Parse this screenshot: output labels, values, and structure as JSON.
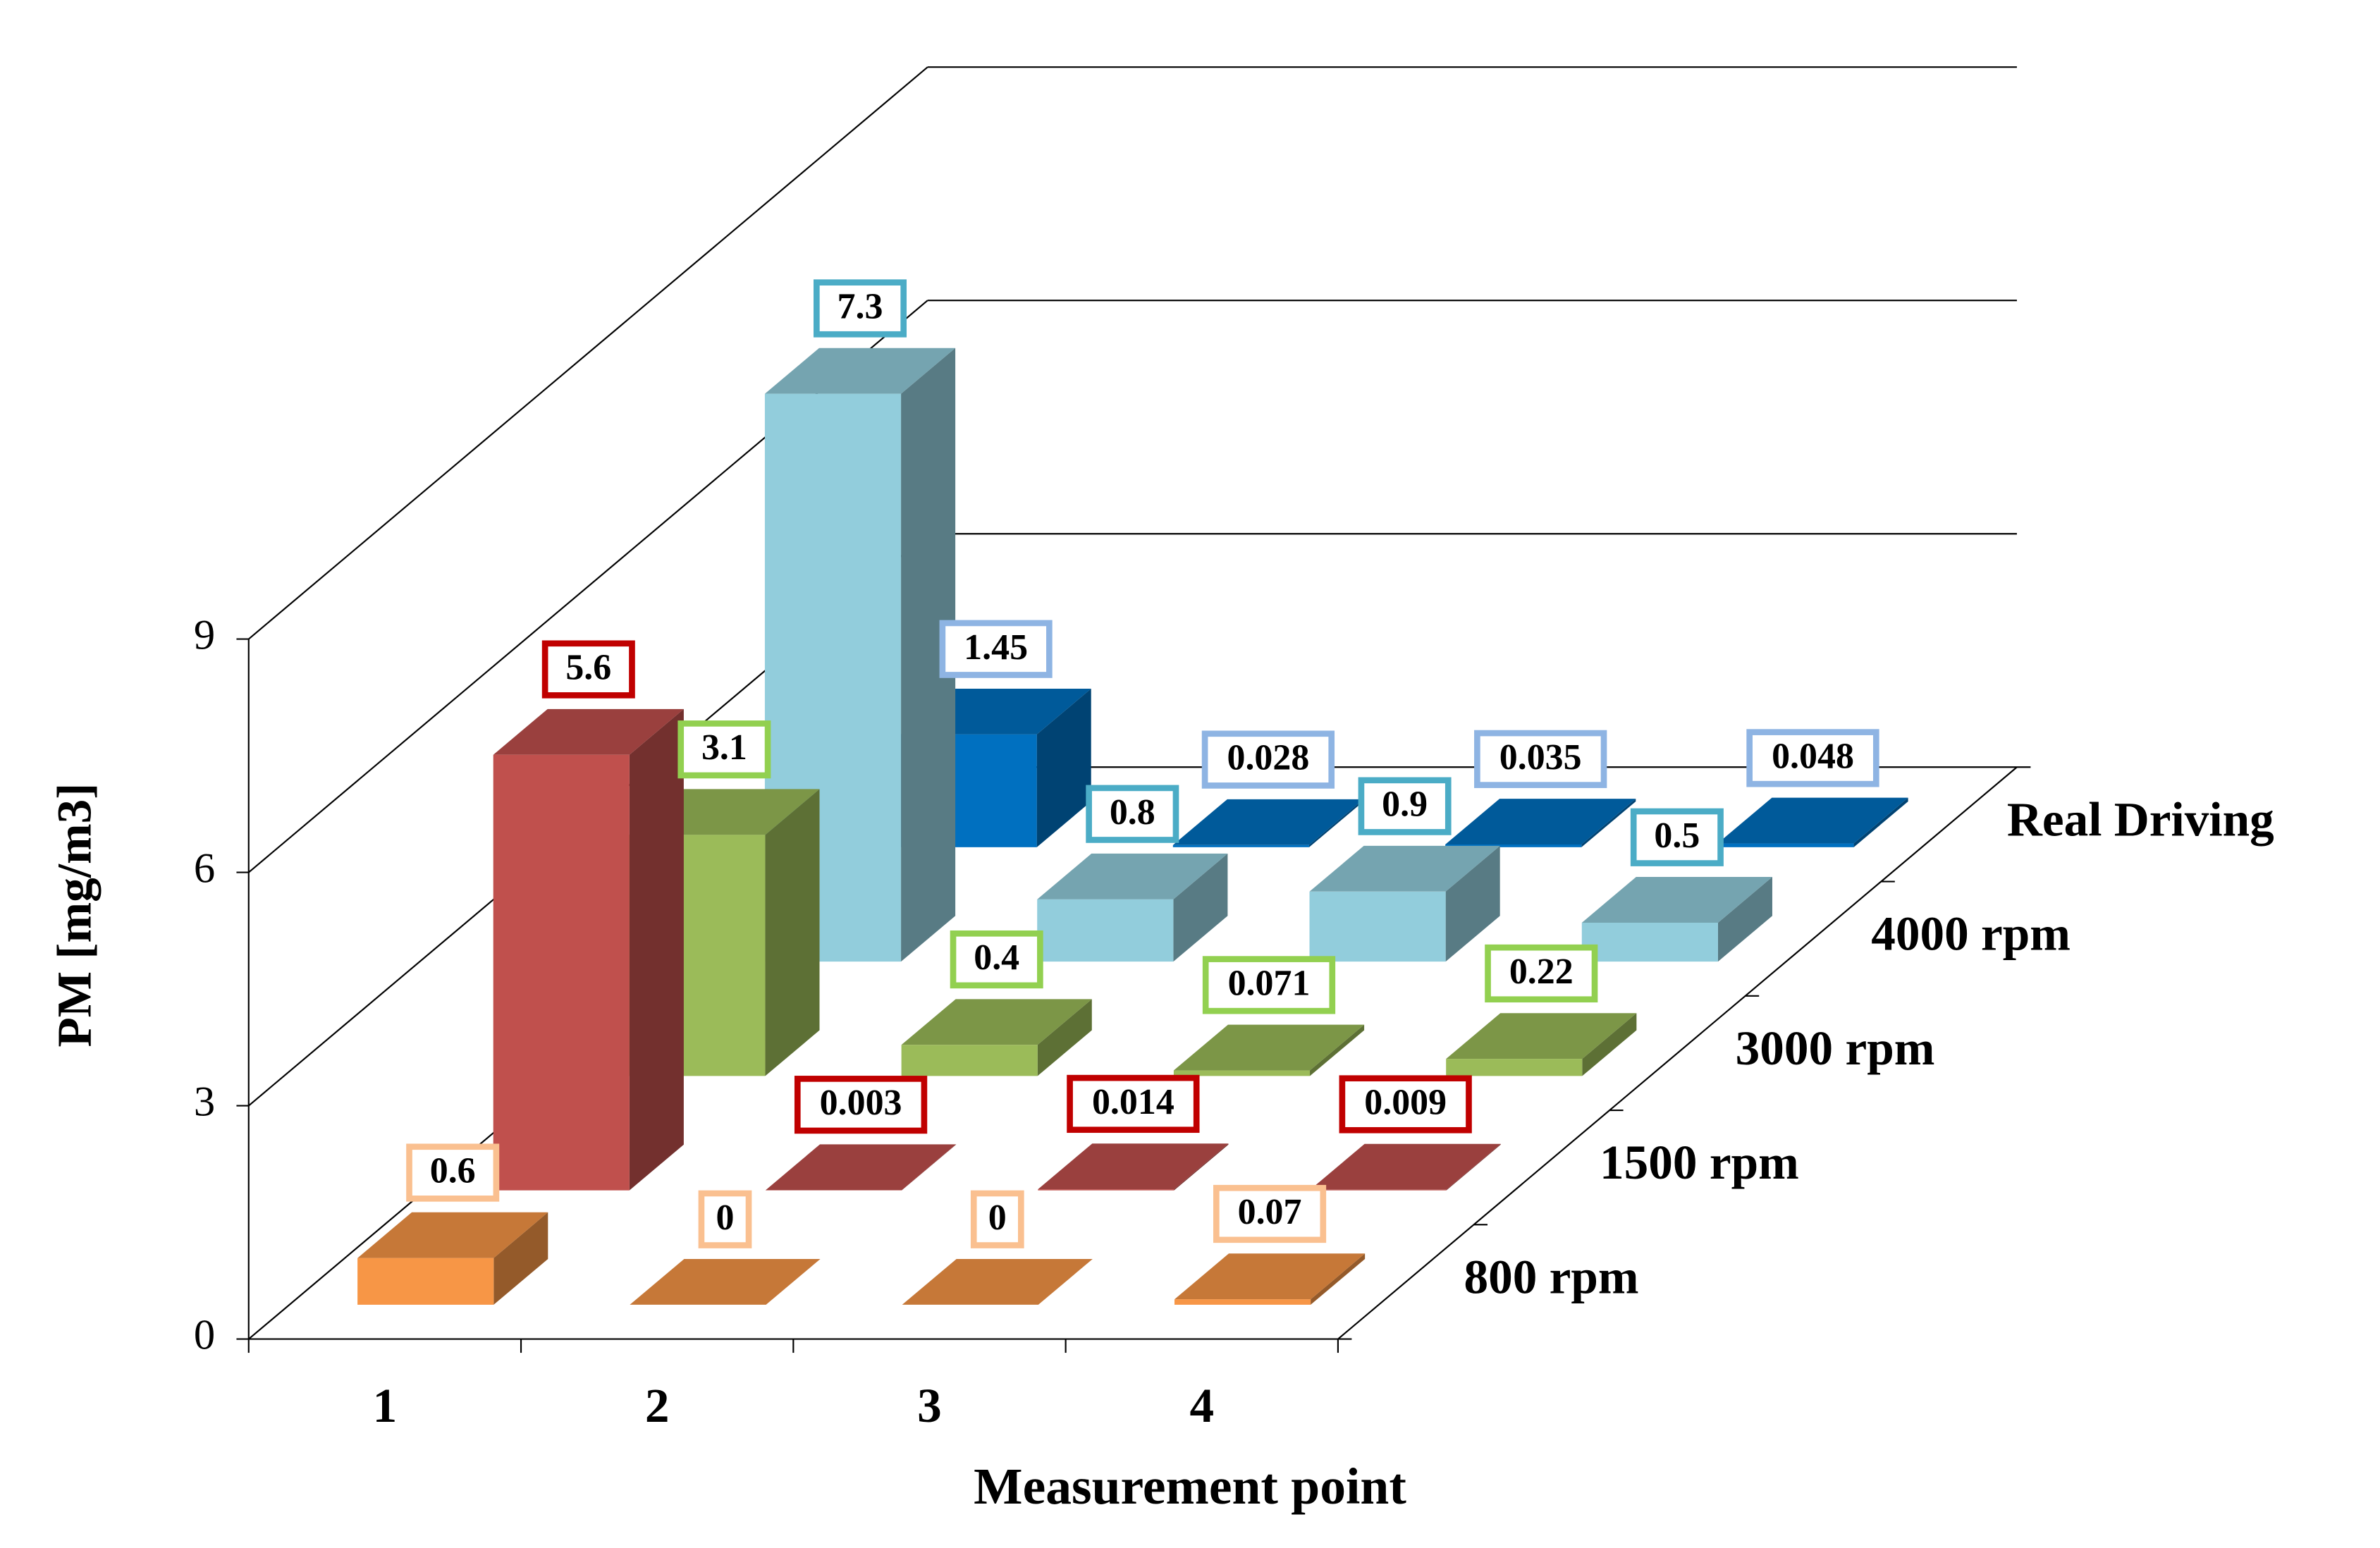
{
  "chart_data": {
    "type": "bar3d",
    "x_label": "Measurement point",
    "y_label": "PM [mg/m3]",
    "categories": [
      "1",
      "2",
      "3",
      "4"
    ],
    "series": [
      {
        "name": "800 rpm",
        "color": "#f79646",
        "label_border": "#fac090",
        "values": [
          0.6,
          0,
          0,
          0.07
        ]
      },
      {
        "name": "1500 rpm",
        "color": "#c0504d",
        "label_border": "#c00000",
        "values": [
          5.6,
          0.003,
          0.014,
          0.009
        ]
      },
      {
        "name": "3000 rpm",
        "color": "#9bbb59",
        "label_border": "#92d050",
        "values": [
          3.1,
          0.4,
          0.071,
          0.22
        ]
      },
      {
        "name": "4000 rpm",
        "color": "#92cddc",
        "label_border": "#4bacc6",
        "values": [
          7.3,
          0.8,
          0.9,
          0.5
        ]
      },
      {
        "name": "Real Driving",
        "color": "#0070c0",
        "label_border": "#8eb4e3",
        "values": [
          1.45,
          0.028,
          0.035,
          0.048
        ]
      }
    ],
    "ylim": [
      0,
      9
    ],
    "yticks": [
      0,
      3,
      6,
      9
    ],
    "grid": true
  }
}
